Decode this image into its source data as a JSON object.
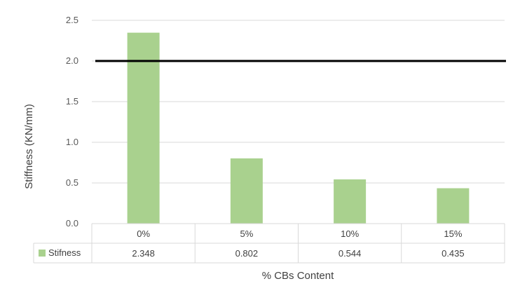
{
  "chart_data": {
    "type": "bar",
    "categories": [
      "0%",
      "5%",
      "10%",
      "15%"
    ],
    "series": [
      {
        "name": "Stifness",
        "values": [
          2.348,
          0.802,
          0.544,
          0.435
        ],
        "color": "#a9d18e"
      }
    ],
    "value_labels": [
      "2.348",
      "0.802",
      "0.544",
      "0.435"
    ],
    "xlabel": "% CBs Content",
    "ylabel": "Stiffness (KN/mm)",
    "ylim": [
      0,
      2.5
    ],
    "yticks": [
      0.0,
      0.5,
      1.0,
      1.5,
      2.0,
      2.5
    ],
    "ytick_labels": [
      "0.0",
      "0.5",
      "1.0",
      "1.5",
      "2.0",
      "2.5"
    ],
    "reference_line": {
      "y": 2.0,
      "color": "#000000"
    },
    "grid": true,
    "data_table": true,
    "legend": "in data table",
    "colors": {
      "grid": "#d9d9d9",
      "text": "#595959",
      "bar": "#a9d18e"
    }
  }
}
